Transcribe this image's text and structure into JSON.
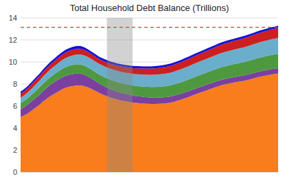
{
  "chart_data": {
    "type": "area",
    "title": "Total Household Debt Balance (Trillions)",
    "stacked": true,
    "grid": true,
    "tick_labels": "y",
    "xlim": [
      0,
      1
    ],
    "ylim": [
      0,
      14
    ],
    "yticks": [
      0,
      2,
      4,
      6,
      8,
      10,
      12,
      14
    ],
    "categories": [
      null,
      null,
      null,
      null,
      null,
      null,
      null,
      null,
      null,
      null,
      null,
      null,
      null,
      null,
      null,
      null,
      null,
      null,
      null,
      null,
      null,
      null,
      null,
      null,
      null,
      null,
      null,
      null,
      null,
      null,
      null,
      null,
      null,
      null,
      null,
      null,
      null,
      null,
      null,
      null,
      null,
      null,
      null,
      null,
      null,
      null,
      null,
      null,
      null,
      null,
      null,
      null,
      null,
      null,
      null,
      null,
      null,
      null,
      null,
      null,
      null,
      null,
      null,
      null,
      null,
      null,
      null,
      null,
      null,
      null
    ],
    "series": [
      {
        "color": "#f97d1c",
        "values": [
          5.0,
          5.15,
          5.35,
          5.6,
          5.85,
          6.1,
          6.4,
          6.65,
          6.9,
          7.1,
          7.3,
          7.5,
          7.65,
          7.75,
          7.82,
          7.88,
          7.88,
          7.82,
          7.7,
          7.55,
          7.38,
          7.2,
          7.05,
          6.9,
          6.78,
          6.68,
          6.58,
          6.5,
          6.43,
          6.38,
          6.32,
          6.28,
          6.25,
          6.22,
          6.2,
          6.18,
          6.18,
          6.2,
          6.22,
          6.25,
          6.3,
          6.38,
          6.48,
          6.58,
          6.7,
          6.82,
          6.95,
          7.08,
          7.2,
          7.32,
          7.44,
          7.56,
          7.68,
          7.8,
          7.9,
          7.98,
          8.05,
          8.12,
          8.18,
          8.24,
          8.3,
          8.38,
          8.47,
          8.56,
          8.65,
          8.72,
          8.78,
          8.85,
          8.9,
          8.95
        ]
      },
      {
        "color": "#7b3fa0",
        "values": [
          0.72,
          0.76,
          0.8,
          0.84,
          0.88,
          0.92,
          0.96,
          1.0,
          1.03,
          1.05,
          1.07,
          1.08,
          1.09,
          1.09,
          1.08,
          1.07,
          1.05,
          1.02,
          0.98,
          0.94,
          0.9,
          0.86,
          0.83,
          0.8,
          0.77,
          0.74,
          0.72,
          0.7,
          0.68,
          0.66,
          0.64,
          0.63,
          0.62,
          0.61,
          0.6,
          0.59,
          0.58,
          0.57,
          0.57,
          0.56,
          0.56,
          0.55,
          0.55,
          0.54,
          0.54,
          0.53,
          0.53,
          0.52,
          0.52,
          0.51,
          0.51,
          0.5,
          0.5,
          0.5,
          0.49,
          0.49,
          0.49,
          0.49,
          0.49,
          0.49,
          0.49,
          0.49,
          0.49,
          0.49,
          0.49,
          0.49,
          0.49,
          0.49,
          0.49,
          0.49
        ]
      },
      {
        "color": "#4e9940",
        "values": [
          0.55,
          0.57,
          0.59,
          0.61,
          0.63,
          0.65,
          0.67,
          0.69,
          0.71,
          0.73,
          0.75,
          0.77,
          0.79,
          0.81,
          0.83,
          0.84,
          0.85,
          0.85,
          0.84,
          0.83,
          0.82,
          0.82,
          0.83,
          0.84,
          0.85,
          0.86,
          0.87,
          0.88,
          0.89,
          0.9,
          0.91,
          0.92,
          0.93,
          0.94,
          0.95,
          0.96,
          0.97,
          0.98,
          0.99,
          1.0,
          1.01,
          1.02,
          1.03,
          1.04,
          1.05,
          1.06,
          1.07,
          1.08,
          1.09,
          1.1,
          1.11,
          1.12,
          1.13,
          1.14,
          1.15,
          1.16,
          1.17,
          1.18,
          1.19,
          1.2,
          1.21,
          1.22,
          1.23,
          1.24,
          1.25,
          1.26,
          1.27,
          1.28,
          1.29,
          1.3
        ]
      },
      {
        "color": "#6aaecc",
        "values": [
          0.48,
          0.5,
          0.52,
          0.55,
          0.58,
          0.61,
          0.64,
          0.67,
          0.7,
          0.73,
          0.76,
          0.79,
          0.82,
          0.85,
          0.87,
          0.89,
          0.91,
          0.92,
          0.93,
          0.94,
          0.95,
          0.96,
          0.97,
          0.98,
          0.99,
          1.0,
          1.01,
          1.02,
          1.03,
          1.04,
          1.05,
          1.06,
          1.07,
          1.08,
          1.09,
          1.1,
          1.11,
          1.12,
          1.13,
          1.14,
          1.15,
          1.16,
          1.17,
          1.18,
          1.19,
          1.2,
          1.21,
          1.22,
          1.23,
          1.24,
          1.25,
          1.26,
          1.27,
          1.28,
          1.29,
          1.3,
          1.31,
          1.32,
          1.33,
          1.34,
          1.35,
          1.36,
          1.37,
          1.38,
          1.39,
          1.4,
          1.41,
          1.42,
          1.43,
          1.44
        ]
      },
      {
        "color": "#cc2020",
        "values": [
          0.38,
          0.39,
          0.4,
          0.41,
          0.42,
          0.43,
          0.44,
          0.45,
          0.46,
          0.47,
          0.48,
          0.49,
          0.5,
          0.51,
          0.52,
          0.53,
          0.52,
          0.5,
          0.48,
          0.46,
          0.45,
          0.44,
          0.44,
          0.45,
          0.46,
          0.47,
          0.48,
          0.49,
          0.5,
          0.51,
          0.52,
          0.53,
          0.54,
          0.55,
          0.56,
          0.57,
          0.58,
          0.59,
          0.6,
          0.61,
          0.62,
          0.63,
          0.64,
          0.65,
          0.66,
          0.67,
          0.68,
          0.69,
          0.7,
          0.71,
          0.72,
          0.73,
          0.74,
          0.75,
          0.76,
          0.77,
          0.78,
          0.79,
          0.8,
          0.81,
          0.82,
          0.83,
          0.84,
          0.85,
          0.86,
          0.87,
          0.88,
          0.89,
          0.9,
          0.91
        ]
      },
      {
        "color": "#1010dd",
        "values": [
          0.18,
          0.18,
          0.19,
          0.19,
          0.2,
          0.2,
          0.21,
          0.21,
          0.22,
          0.22,
          0.23,
          0.23,
          0.24,
          0.24,
          0.25,
          0.25,
          0.25,
          0.24,
          0.23,
          0.22,
          0.22,
          0.21,
          0.21,
          0.21,
          0.2,
          0.2,
          0.2,
          0.2,
          0.2,
          0.2,
          0.2,
          0.2,
          0.2,
          0.2,
          0.2,
          0.2,
          0.2,
          0.2,
          0.2,
          0.2,
          0.2,
          0.2,
          0.2,
          0.2,
          0.2,
          0.2,
          0.2,
          0.2,
          0.2,
          0.2,
          0.2,
          0.2,
          0.2,
          0.2,
          0.2,
          0.2,
          0.2,
          0.2,
          0.2,
          0.2,
          0.2,
          0.2,
          0.2,
          0.2,
          0.2,
          0.2,
          0.2,
          0.2,
          0.2,
          0.2
        ]
      }
    ],
    "bands": [
      {
        "start": 0.335,
        "end": 0.435,
        "color": "#888888"
      }
    ],
    "reference_line": {
      "value": 13.15,
      "color": "#ee3333",
      "line_style": "dashed"
    }
  }
}
